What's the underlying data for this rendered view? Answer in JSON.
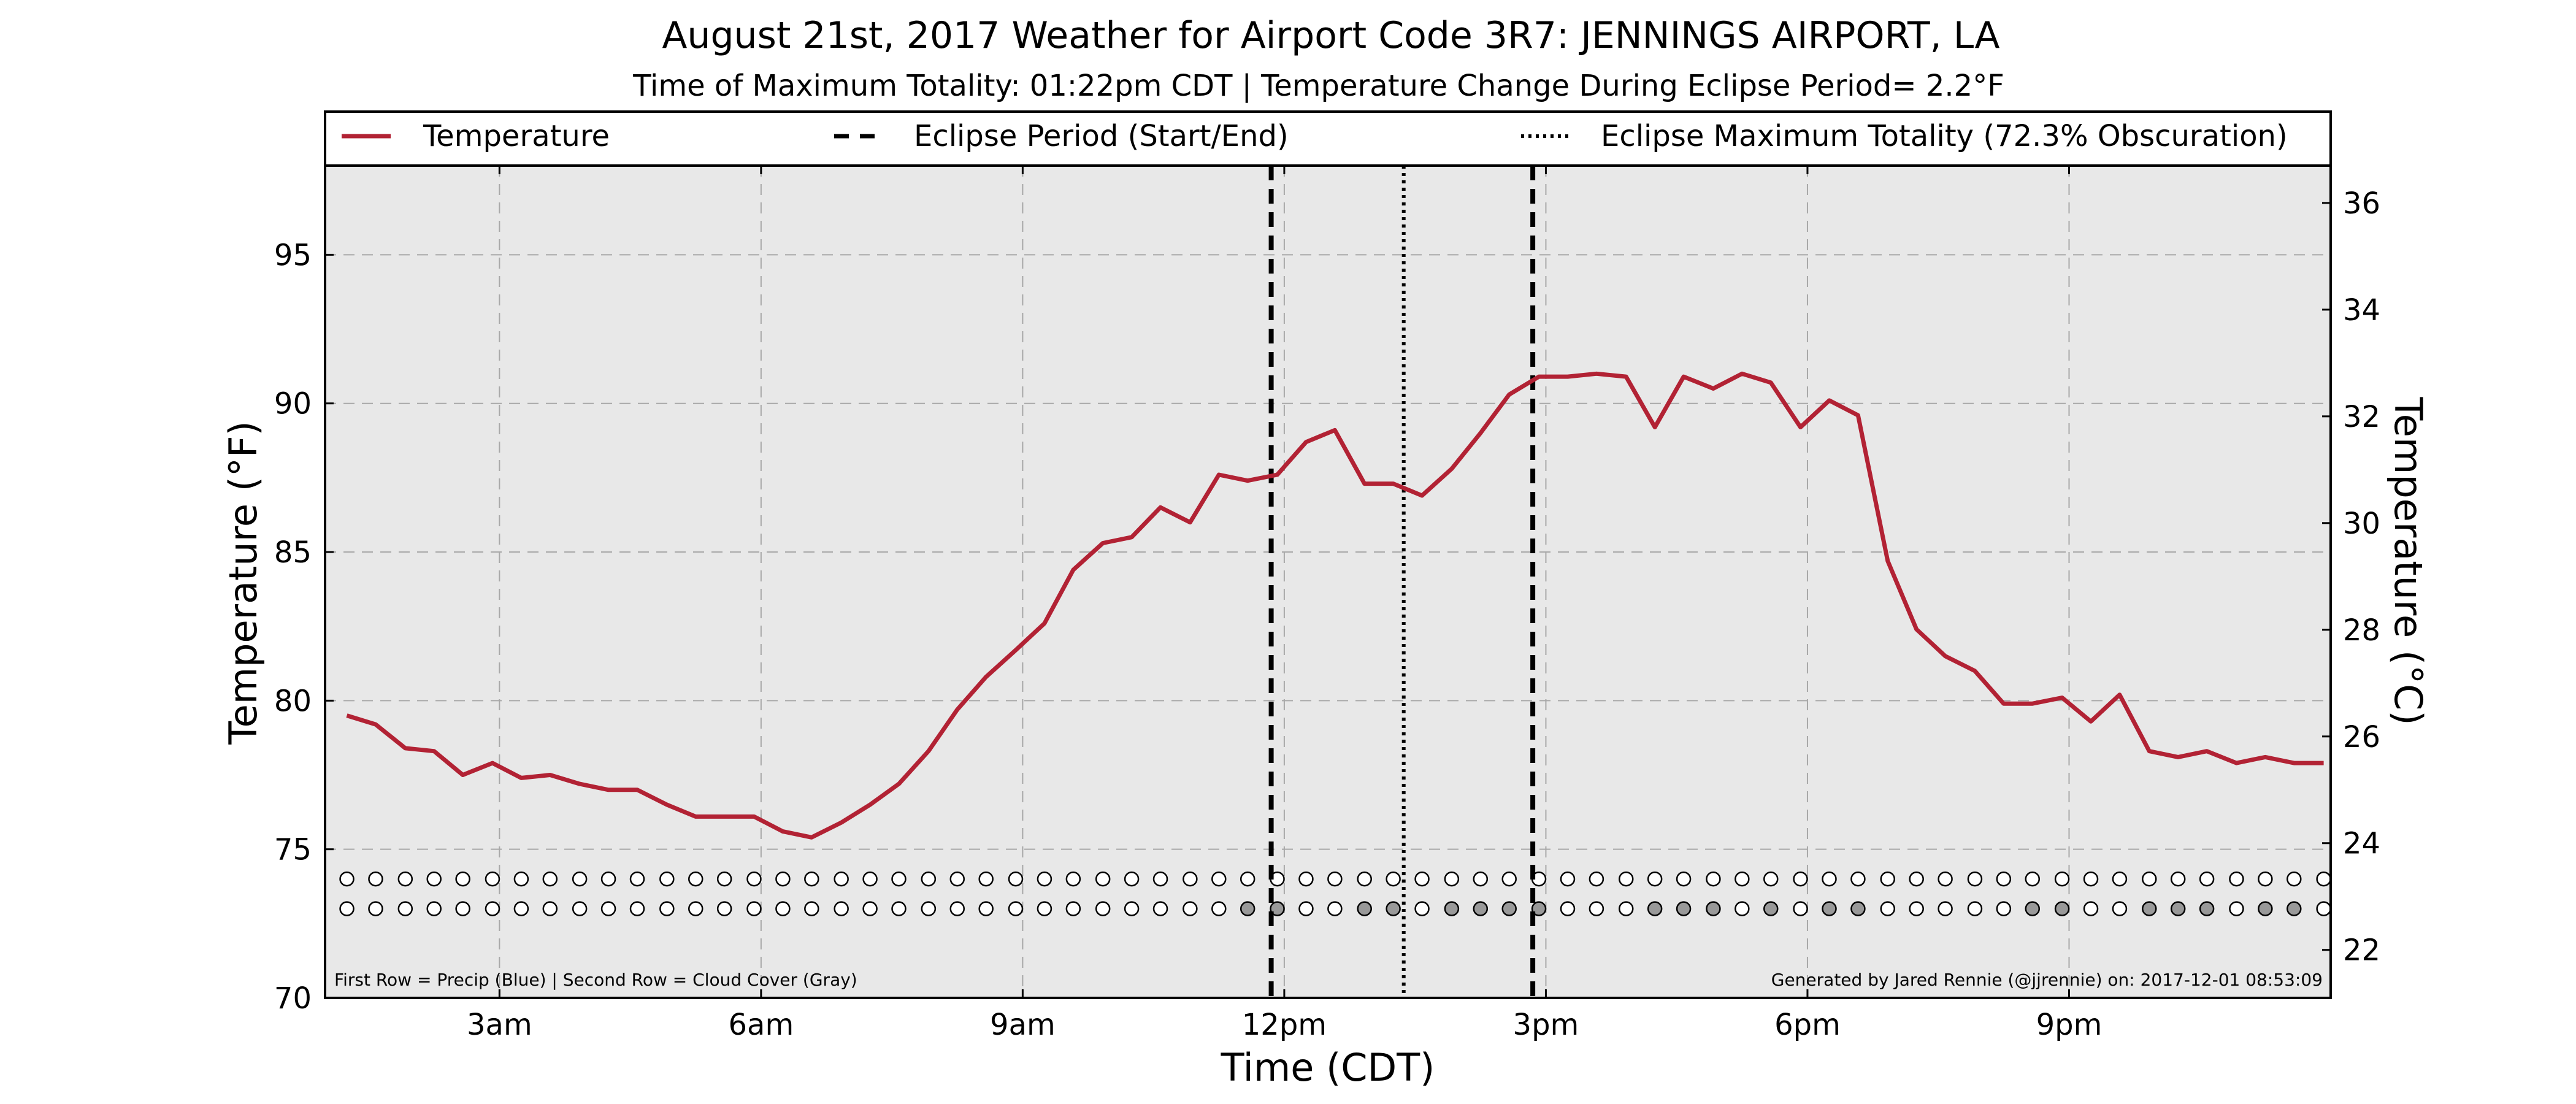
{
  "chart_data": {
    "type": "line",
    "title": "August 21st, 2017 Weather for Airport Code 3R7: JENNINGS AIRPORT, LA",
    "subtitle": "Time of Maximum Totality: 01:22pm CDT | Temperature Change During Eclipse Period= 2.2°F",
    "xlabel": "Time (CDT)",
    "ylabel": "Temperature (°F)",
    "ylabel_right": "Temperature (°C)",
    "xlim": [
      1.0,
      24.0
    ],
    "ylim": [
      70,
      98
    ],
    "ylim_right": [
      21.1,
      36.7
    ],
    "grid": true,
    "legend_position": "top",
    "x_ticks": [
      {
        "x": 3,
        "label": "3am"
      },
      {
        "x": 6,
        "label": "6am"
      },
      {
        "x": 9,
        "label": "9am"
      },
      {
        "x": 12,
        "label": "12pm"
      },
      {
        "x": 15,
        "label": "3pm"
      },
      {
        "x": 18,
        "label": "6pm"
      },
      {
        "x": 21,
        "label": "9pm"
      }
    ],
    "y_ticks": [
      70,
      75,
      80,
      85,
      90,
      95
    ],
    "y_ticks_right": [
      22,
      24,
      26,
      28,
      30,
      32,
      34,
      36
    ],
    "legend": [
      {
        "label": "Temperature",
        "style": "solid",
        "color": "#b22234"
      },
      {
        "label": "Eclipse Period (Start/End)",
        "style": "dashed",
        "color": "#000000"
      },
      {
        "label": "Eclipse Maximum Totality (72.3% Obscuration)",
        "style": "dotted",
        "color": "#000000"
      }
    ],
    "series": [
      {
        "name": "Temperature",
        "color": "#b22234",
        "x": [
          1.25,
          1.58,
          1.92,
          2.25,
          2.58,
          2.92,
          3.25,
          3.58,
          3.92,
          4.25,
          4.58,
          4.92,
          5.25,
          5.58,
          5.92,
          6.25,
          6.58,
          6.92,
          7.25,
          7.58,
          7.92,
          8.25,
          8.58,
          8.92,
          9.25,
          9.58,
          9.92,
          10.25,
          10.58,
          10.92,
          11.25,
          11.58,
          11.92,
          12.25,
          12.58,
          12.92,
          13.25,
          13.58,
          13.92,
          14.25,
          14.58,
          14.92,
          15.25,
          15.58,
          15.92,
          16.25,
          16.58,
          16.92,
          17.25,
          17.58,
          17.92,
          18.25,
          18.58,
          18.92,
          19.25,
          19.58,
          19.92,
          20.25,
          20.58,
          20.92,
          21.25,
          21.58,
          21.92,
          22.25,
          22.58,
          22.92,
          23.25,
          23.58,
          23.92
        ],
        "values": [
          79.5,
          79.2,
          78.4,
          78.3,
          77.5,
          77.9,
          77.4,
          77.5,
          77.2,
          77.0,
          77.0,
          76.5,
          76.1,
          76.1,
          76.1,
          75.6,
          75.4,
          75.9,
          76.5,
          77.2,
          78.3,
          79.7,
          80.8,
          81.7,
          82.6,
          84.4,
          85.3,
          85.5,
          86.5,
          86.0,
          87.6,
          87.4,
          87.6,
          88.7,
          89.1,
          87.3,
          87.3,
          86.9,
          87.8,
          89.0,
          90.3,
          90.9,
          90.9,
          91.0,
          90.9,
          89.2,
          90.9,
          90.5,
          91.0,
          90.7,
          89.2,
          90.1,
          89.6,
          84.7,
          82.4,
          81.5,
          81.0,
          79.9,
          79.9,
          80.1,
          79.3,
          80.2,
          78.3,
          78.1,
          78.3,
          77.9,
          78.1,
          77.9,
          77.9
        ]
      }
    ],
    "eclipse_start_x": 11.85,
    "eclipse_end_x": 14.85,
    "eclipse_max_x": 13.37,
    "marker_rows": {
      "x": [
        1.25,
        1.58,
        1.92,
        2.25,
        2.58,
        2.92,
        3.25,
        3.58,
        3.92,
        4.25,
        4.58,
        4.92,
        5.25,
        5.58,
        5.92,
        6.25,
        6.58,
        6.92,
        7.25,
        7.58,
        7.92,
        8.25,
        8.58,
        8.92,
        9.25,
        9.58,
        9.92,
        10.25,
        10.58,
        10.92,
        11.25,
        11.58,
        11.92,
        12.25,
        12.58,
        12.92,
        13.25,
        13.58,
        13.92,
        14.25,
        14.58,
        14.92,
        15.25,
        15.58,
        15.92,
        16.25,
        16.58,
        16.92,
        17.25,
        17.58,
        17.92,
        18.25,
        18.58,
        18.92,
        19.25,
        19.58,
        19.92,
        20.25,
        20.58,
        20.92,
        21.25,
        21.58,
        21.92,
        22.25,
        22.58,
        22.92,
        23.25,
        23.58,
        23.92
      ],
      "precip_y": 74,
      "cloud_y": 73,
      "precip": [
        0,
        0,
        0,
        0,
        0,
        0,
        0,
        0,
        0,
        0,
        0,
        0,
        0,
        0,
        0,
        0,
        0,
        0,
        0,
        0,
        0,
        0,
        0,
        0,
        0,
        0,
        0,
        0,
        0,
        0,
        0,
        0,
        0,
        0,
        0,
        0,
        0,
        0,
        0,
        0,
        0,
        0,
        0,
        0,
        0,
        0,
        0,
        0,
        0,
        0,
        0,
        0,
        0,
        0,
        0,
        0,
        0,
        0,
        0,
        0,
        0,
        0,
        0,
        0,
        0,
        0,
        0,
        0,
        0
      ],
      "cloud": [
        0,
        0,
        0,
        0,
        0,
        0,
        0,
        0,
        0,
        0,
        0,
        0,
        0,
        0,
        0,
        0,
        0,
        0,
        0,
        0,
        0,
        0,
        0,
        0,
        0,
        0,
        0,
        0,
        0,
        0,
        0,
        1,
        1,
        0,
        0,
        1,
        1,
        0,
        1,
        1,
        1,
        1,
        0,
        0,
        0,
        1,
        1,
        1,
        0,
        1,
        0,
        1,
        1,
        0,
        0,
        0,
        0,
        0,
        1,
        1,
        0,
        0,
        1,
        1,
        1,
        0,
        1,
        1,
        0
      ]
    },
    "annotations": {
      "bottom_left": "First Row = Precip (Blue) | Second Row = Cloud Cover (Gray)",
      "bottom_right": "Generated by Jared Rennie (@jjrennie) on: 2017-12-01 08:53:09"
    },
    "colors": {
      "plot_background": "#e8e8e8",
      "grid": "#a8a8a8",
      "cloud_fill": "#999999",
      "marker_empty": "#ffffff",
      "temperature": "#b22234"
    }
  }
}
